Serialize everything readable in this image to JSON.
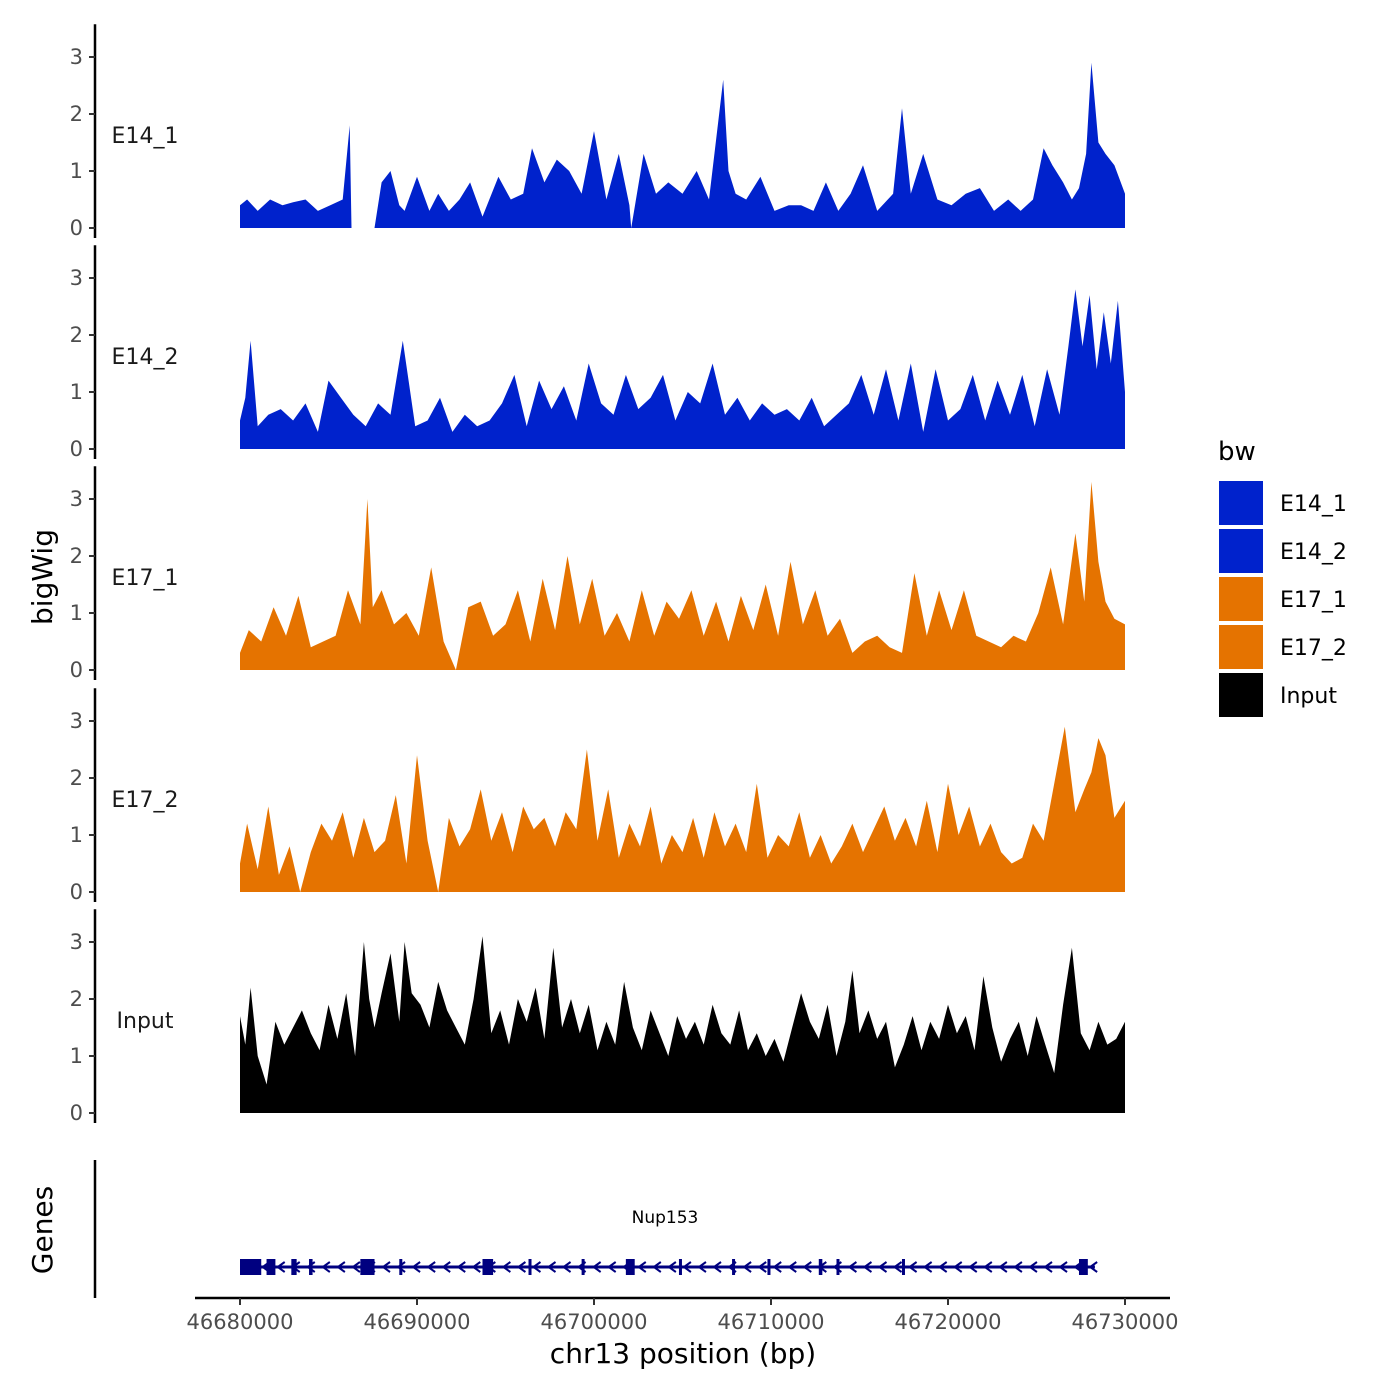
{
  "chart_data": {
    "type": "area",
    "ylabel": "bigWig",
    "xlabel": "chr13 position (bp)",
    "xlim": [
      46680000,
      46730000
    ],
    "ylim": [
      0,
      3.4
    ],
    "y_ticks": [
      0,
      1,
      2,
      3
    ],
    "x_ticks": [
      46680000,
      46690000,
      46700000,
      46710000,
      46720000,
      46730000
    ],
    "x_tick_labels": [
      "46680000",
      "46690000",
      "46700000",
      "46710000",
      "46720000",
      "46730000"
    ],
    "legend": {
      "title": "bw",
      "entries": [
        {
          "label": "E14_1",
          "color": "#0022cc"
        },
        {
          "label": "E14_2",
          "color": "#0022cc"
        },
        {
          "label": "E17_1",
          "color": "#e57300"
        },
        {
          "label": "E17_2",
          "color": "#e57300"
        },
        {
          "label": "Input",
          "color": "#000000"
        }
      ]
    },
    "tracks": [
      {
        "name": "E14_1",
        "color": "#0022cc",
        "x": [
          46680000,
          46680400,
          46681000,
          46681700,
          46682400,
          46683000,
          46683700,
          46684400,
          46685100,
          46685800,
          46686200,
          46686300,
          46686400,
          46686500,
          46686600,
          46686700,
          46687600,
          46688000,
          46688500,
          46689000,
          46689300,
          46690000,
          46690700,
          46691200,
          46691800,
          46692400,
          46693000,
          46693700,
          46694600,
          46695300,
          46696000,
          46696500,
          46697200,
          46697900,
          46698600,
          46699300,
          46700000,
          46700700,
          46701400,
          46702000,
          46702100,
          46702800,
          46703500,
          46704200,
          46705000,
          46705800,
          46706500,
          46707300,
          46707600,
          46708000,
          46708600,
          46709400,
          46710200,
          46711000,
          46711700,
          46712400,
          46713100,
          46713800,
          46714500,
          46715200,
          46716000,
          46716900,
          46717400,
          46717900,
          46718600,
          46719400,
          46720200,
          46721000,
          46721800,
          46722600,
          46723400,
          46724100,
          46724800,
          46725400,
          46725900,
          46726500,
          46727000,
          46727400,
          46727800,
          46728100,
          46728500,
          46728900,
          46729400,
          46730000
        ],
        "y": [
          0.4,
          0.5,
          0.3,
          0.5,
          0.4,
          0.45,
          0.5,
          0.3,
          0.4,
          0.5,
          1.8,
          0.0,
          0.0,
          0.0,
          0.0,
          0.0,
          0.0,
          0.8,
          1.0,
          0.4,
          0.3,
          0.9,
          0.3,
          0.6,
          0.3,
          0.5,
          0.8,
          0.2,
          0.9,
          0.5,
          0.6,
          1.4,
          0.8,
          1.2,
          1.0,
          0.6,
          1.7,
          0.5,
          1.3,
          0.4,
          0.0,
          1.3,
          0.6,
          0.8,
          0.6,
          1.0,
          0.5,
          2.6,
          1.0,
          0.6,
          0.5,
          0.9,
          0.3,
          0.4,
          0.4,
          0.3,
          0.8,
          0.3,
          0.6,
          1.1,
          0.3,
          0.6,
          2.1,
          0.6,
          1.3,
          0.5,
          0.4,
          0.6,
          0.7,
          0.3,
          0.5,
          0.3,
          0.5,
          1.4,
          1.1,
          0.8,
          0.5,
          0.7,
          1.3,
          2.9,
          1.5,
          1.3,
          1.1,
          0.6
        ]
      },
      {
        "name": "E14_2",
        "color": "#0022cc",
        "x": [
          46680000,
          46680300,
          46680600,
          46681000,
          46681600,
          46682300,
          46683000,
          46683700,
          46684400,
          46685000,
          46685700,
          46686400,
          46687100,
          46687800,
          46688500,
          46689200,
          46689900,
          46690600,
          46691300,
          46692000,
          46692700,
          46693400,
          46694100,
          46694800,
          46695500,
          46696200,
          46696900,
          46697600,
          46698300,
          46699000,
          46699700,
          46700400,
          46701100,
          46701800,
          46702500,
          46703200,
          46703900,
          46704600,
          46705300,
          46706000,
          46706700,
          46707400,
          46708100,
          46708800,
          46709500,
          46710200,
          46710900,
          46711600,
          46712300,
          46713000,
          46713700,
          46714400,
          46715100,
          46715800,
          46716500,
          46717200,
          46717900,
          46718600,
          46719300,
          46720000,
          46720700,
          46721400,
          46722100,
          46722800,
          46723500,
          46724200,
          46724900,
          46725600,
          46726300,
          46726800,
          46727200,
          46727600,
          46728000,
          46728400,
          46728800,
          46729200,
          46729600,
          46730000
        ],
        "y": [
          0.5,
          0.9,
          1.9,
          0.4,
          0.6,
          0.7,
          0.5,
          0.8,
          0.3,
          1.2,
          0.9,
          0.6,
          0.4,
          0.8,
          0.6,
          1.9,
          0.4,
          0.5,
          0.9,
          0.3,
          0.6,
          0.4,
          0.5,
          0.8,
          1.3,
          0.4,
          1.2,
          0.7,
          1.1,
          0.5,
          1.5,
          0.8,
          0.6,
          1.3,
          0.7,
          0.9,
          1.3,
          0.5,
          1.0,
          0.8,
          1.5,
          0.6,
          0.9,
          0.5,
          0.8,
          0.6,
          0.7,
          0.5,
          0.9,
          0.4,
          0.6,
          0.8,
          1.3,
          0.6,
          1.4,
          0.5,
          1.5,
          0.3,
          1.4,
          0.5,
          0.7,
          1.3,
          0.5,
          1.2,
          0.6,
          1.3,
          0.4,
          1.4,
          0.6,
          1.8,
          2.8,
          1.8,
          2.7,
          1.4,
          2.4,
          1.5,
          2.6,
          1.0
        ]
      },
      {
        "name": "E17_1",
        "color": "#e57300",
        "x": [
          46680000,
          46680500,
          46681200,
          46681900,
          46682600,
          46683300,
          46684000,
          46684700,
          46685400,
          46686100,
          46686800,
          46687200,
          46687500,
          46688000,
          46688700,
          46689400,
          46690100,
          46690800,
          46691500,
          46692200,
          46692900,
          46693600,
          46694300,
          46695000,
          46695700,
          46696400,
          46697100,
          46697800,
          46698500,
          46699200,
          46699900,
          46700600,
          46701300,
          46702000,
          46702700,
          46703400,
          46704100,
          46704800,
          46705500,
          46706200,
          46706900,
          46707600,
          46708300,
          46709000,
          46709700,
          46710400,
          46711100,
          46711800,
          46712500,
          46713200,
          46713900,
          46714600,
          46715300,
          46716000,
          46716700,
          46717400,
          46718100,
          46718800,
          46719500,
          46720200,
          46720900,
          46721600,
          46722300,
          46723000,
          46723700,
          46724400,
          46725100,
          46725800,
          46726500,
          46727200,
          46727700,
          46728100,
          46728500,
          46728900,
          46729400,
          46730000
        ],
        "y": [
          0.3,
          0.7,
          0.5,
          1.1,
          0.6,
          1.3,
          0.4,
          0.5,
          0.6,
          1.4,
          0.8,
          3.0,
          1.1,
          1.4,
          0.8,
          1.0,
          0.6,
          1.8,
          0.5,
          0.0,
          1.1,
          1.2,
          0.6,
          0.8,
          1.4,
          0.5,
          1.6,
          0.7,
          2.0,
          0.8,
          1.6,
          0.6,
          1.0,
          0.5,
          1.4,
          0.6,
          1.2,
          0.9,
          1.4,
          0.6,
          1.2,
          0.5,
          1.3,
          0.7,
          1.5,
          0.6,
          1.9,
          0.8,
          1.4,
          0.6,
          0.9,
          0.3,
          0.5,
          0.6,
          0.4,
          0.3,
          1.7,
          0.6,
          1.4,
          0.7,
          1.4,
          0.6,
          0.5,
          0.4,
          0.6,
          0.5,
          1.0,
          1.8,
          0.8,
          2.4,
          1.2,
          3.3,
          1.9,
          1.2,
          0.9,
          0.8
        ]
      },
      {
        "name": "E17_2",
        "color": "#e57300",
        "x": [
          46680000,
          46680400,
          46681000,
          46681600,
          46682200,
          46682800,
          46683400,
          46684000,
          46684600,
          46685200,
          46685800,
          46686400,
          46687000,
          46687600,
          46688200,
          46688800,
          46689400,
          46690000,
          46690600,
          46691200,
          46691800,
          46692400,
          46693000,
          46693600,
          46694200,
          46694800,
          46695400,
          46696000,
          46696600,
          46697200,
          46697800,
          46698400,
          46699000,
          46699600,
          46700200,
          46700800,
          46701400,
          46702000,
          46702600,
          46703200,
          46703800,
          46704400,
          46705000,
          46705600,
          46706200,
          46706800,
          46707400,
          46708000,
          46708600,
          46709200,
          46709800,
          46710400,
          46711000,
          46711600,
          46712200,
          46712800,
          46713400,
          46714000,
          46714600,
          46715200,
          46715800,
          46716400,
          46717000,
          46717600,
          46718200,
          46718800,
          46719400,
          46720000,
          46720600,
          46721200,
          46721800,
          46722400,
          46723000,
          46723600,
          46724200,
          46724800,
          46725400,
          46726000,
          46726600,
          46727200,
          46727700,
          46728100,
          46728500,
          46728900,
          46729400,
          46730000
        ],
        "y": [
          0.5,
          1.2,
          0.4,
          1.5,
          0.3,
          0.8,
          0.0,
          0.7,
          1.2,
          0.9,
          1.4,
          0.6,
          1.3,
          0.7,
          0.9,
          1.7,
          0.5,
          2.4,
          0.9,
          0.0,
          1.3,
          0.8,
          1.1,
          1.8,
          0.9,
          1.4,
          0.7,
          1.5,
          1.1,
          1.3,
          0.8,
          1.4,
          1.1,
          2.5,
          0.9,
          1.8,
          0.6,
          1.2,
          0.8,
          1.5,
          0.5,
          1.0,
          0.7,
          1.3,
          0.6,
          1.4,
          0.8,
          1.2,
          0.7,
          1.9,
          0.6,
          1.0,
          0.8,
          1.4,
          0.6,
          1.0,
          0.5,
          0.8,
          1.2,
          0.7,
          1.1,
          1.5,
          0.9,
          1.3,
          0.8,
          1.6,
          0.7,
          1.9,
          1.0,
          1.5,
          0.8,
          1.2,
          0.7,
          0.5,
          0.6,
          1.2,
          0.9,
          1.9,
          2.9,
          1.4,
          1.8,
          2.1,
          2.7,
          2.4,
          1.3,
          1.6
        ]
      },
      {
        "name": "Input",
        "color": "#000000",
        "x": [
          46680000,
          46680300,
          46680600,
          46681000,
          46681500,
          46682000,
          46682500,
          46683000,
          46683500,
          46684000,
          46684500,
          46685000,
          46685500,
          46686000,
          46686500,
          46687000,
          46687300,
          46687600,
          46688000,
          46688500,
          46689000,
          46689300,
          46689700,
          46690200,
          46690700,
          46691200,
          46691700,
          46692200,
          46692700,
          46693200,
          46693700,
          46694200,
          46694700,
          46695200,
          46695700,
          46696200,
          46696700,
          46697200,
          46697700,
          46698200,
          46698700,
          46699200,
          46699700,
          46700200,
          46700700,
          46701200,
          46701700,
          46702200,
          46702700,
          46703200,
          46703700,
          46704200,
          46704700,
          46705200,
          46705700,
          46706200,
          46706700,
          46707200,
          46707700,
          46708200,
          46708700,
          46709200,
          46709700,
          46710200,
          46710700,
          46711200,
          46711700,
          46712200,
          46712700,
          46713200,
          46713700,
          46714200,
          46714600,
          46715000,
          46715500,
          46716000,
          46716500,
          46717000,
          46717500,
          46718000,
          46718500,
          46719000,
          46719500,
          46720000,
          46720500,
          46721000,
          46721500,
          46722000,
          46722500,
          46723000,
          46723500,
          46724000,
          46724500,
          46725000,
          46725500,
          46726000,
          46726500,
          46727000,
          46727500,
          46728000,
          46728500,
          46729000,
          46729500,
          46730000
        ],
        "y": [
          1.7,
          1.2,
          2.2,
          1.0,
          0.5,
          1.6,
          1.2,
          1.5,
          1.8,
          1.4,
          1.1,
          1.9,
          1.3,
          2.1,
          1.0,
          3.0,
          2.0,
          1.5,
          2.1,
          2.8,
          1.6,
          3.0,
          2.1,
          1.9,
          1.5,
          2.3,
          1.8,
          1.5,
          1.2,
          2.0,
          3.1,
          1.4,
          1.8,
          1.2,
          2.0,
          1.6,
          2.2,
          1.3,
          2.9,
          1.5,
          2.0,
          1.4,
          1.9,
          1.1,
          1.6,
          1.2,
          2.3,
          1.5,
          1.1,
          1.8,
          1.4,
          1.0,
          1.7,
          1.3,
          1.6,
          1.2,
          1.9,
          1.4,
          1.2,
          1.8,
          1.1,
          1.4,
          1.0,
          1.3,
          0.9,
          1.5,
          2.1,
          1.6,
          1.3,
          1.9,
          1.0,
          1.6,
          2.5,
          1.4,
          1.8,
          1.3,
          1.6,
          0.8,
          1.2,
          1.7,
          1.1,
          1.6,
          1.3,
          1.9,
          1.4,
          1.7,
          1.1,
          2.4,
          1.5,
          0.9,
          1.3,
          1.6,
          1.0,
          1.7,
          1.2,
          0.7,
          1.9,
          2.9,
          1.4,
          1.1,
          1.6,
          1.2,
          1.3,
          1.6
        ]
      }
    ],
    "genes_track": {
      "label": "Genes",
      "gene_name": "Nup153",
      "color": "#000080",
      "start": 46680000,
      "end": 46728300,
      "strand": "-",
      "exons": [
        {
          "start": 46680000,
          "end": 46681200
        },
        {
          "start": 46681500,
          "end": 46682000
        },
        {
          "start": 46682900,
          "end": 46683200
        },
        {
          "start": 46683900,
          "end": 46684100
        },
        {
          "start": 46686800,
          "end": 46687600
        },
        {
          "start": 46689000,
          "end": 46689100
        },
        {
          "start": 46693700,
          "end": 46694300
        },
        {
          "start": 46696300,
          "end": 46696400
        },
        {
          "start": 46699300,
          "end": 46699400
        },
        {
          "start": 46701800,
          "end": 46702300
        },
        {
          "start": 46704800,
          "end": 46704900
        },
        {
          "start": 46707800,
          "end": 46707900
        },
        {
          "start": 46709800,
          "end": 46709900
        },
        {
          "start": 46712700,
          "end": 46712900
        },
        {
          "start": 46713700,
          "end": 46713800
        },
        {
          "start": 46717400,
          "end": 46717500
        },
        {
          "start": 46727400,
          "end": 46727900
        }
      ]
    }
  }
}
